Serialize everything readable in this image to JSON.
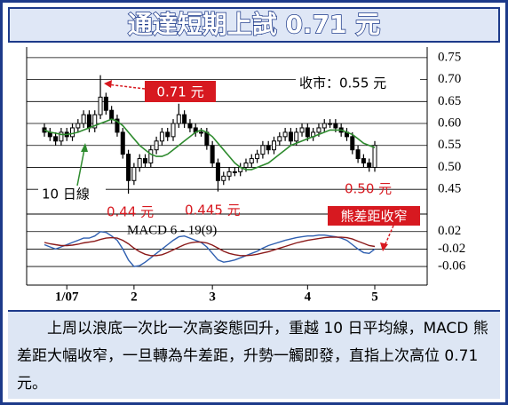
{
  "chart_data": {
    "type": "candlestick",
    "title": "通達短期上試 0.71 元",
    "categories": [
      null,
      null,
      null,
      null,
      "1/07",
      null,
      null,
      null,
      null,
      null,
      null,
      null,
      null,
      null,
      null,
      null,
      "2",
      null,
      null,
      null,
      null,
      null,
      null,
      null,
      null,
      null,
      null,
      null,
      null,
      null,
      "3",
      null,
      null,
      null,
      null,
      null,
      null,
      null,
      null,
      null,
      null,
      null,
      null,
      null,
      null,
      null,
      null,
      "4",
      null,
      null,
      null,
      null,
      null,
      null,
      null,
      null,
      null,
      null,
      null,
      "5"
    ],
    "open": [
      0.59,
      0.58,
      0.57,
      0.56,
      0.58,
      0.57,
      0.59,
      0.6,
      0.62,
      0.59,
      0.62,
      0.66,
      0.63,
      0.61,
      0.58,
      0.53,
      0.47,
      0.5,
      0.52,
      0.51,
      0.54,
      0.56,
      0.58,
      0.57,
      0.6,
      0.62,
      0.6,
      0.59,
      0.58,
      0.58,
      0.55,
      0.51,
      0.47,
      0.48,
      0.49,
      0.49,
      0.5,
      0.51,
      0.52,
      0.53,
      0.55,
      0.54,
      0.56,
      0.57,
      0.58,
      0.56,
      0.58,
      0.59,
      0.57,
      0.58,
      0.59,
      0.6,
      0.6,
      0.59,
      0.58,
      0.57,
      0.54,
      0.52,
      0.51,
      0.5
    ],
    "high": [
      0.6,
      0.59,
      0.58,
      0.59,
      0.59,
      0.6,
      0.61,
      0.63,
      0.63,
      0.63,
      0.71,
      0.67,
      0.64,
      0.62,
      0.59,
      0.54,
      0.51,
      0.53,
      0.53,
      0.55,
      0.57,
      0.59,
      0.59,
      0.61,
      0.645,
      0.63,
      0.61,
      0.6,
      0.59,
      0.59,
      0.56,
      0.52,
      0.49,
      0.5,
      0.5,
      0.51,
      0.52,
      0.53,
      0.54,
      0.56,
      0.56,
      0.57,
      0.58,
      0.59,
      0.59,
      0.59,
      0.6,
      0.6,
      0.59,
      0.6,
      0.61,
      0.61,
      0.61,
      0.6,
      0.59,
      0.58,
      0.55,
      0.53,
      0.52,
      0.56
    ],
    "low": [
      0.57,
      0.56,
      0.55,
      0.55,
      0.56,
      0.56,
      0.58,
      0.59,
      0.58,
      0.58,
      0.61,
      0.62,
      0.6,
      0.57,
      0.52,
      0.44,
      0.46,
      0.49,
      0.5,
      0.5,
      0.53,
      0.55,
      0.56,
      0.56,
      0.59,
      0.59,
      0.58,
      0.57,
      0.57,
      0.54,
      0.5,
      0.445,
      0.46,
      0.47,
      0.48,
      0.48,
      0.49,
      0.5,
      0.51,
      0.52,
      0.53,
      0.53,
      0.55,
      0.56,
      0.55,
      0.55,
      0.57,
      0.56,
      0.56,
      0.57,
      0.58,
      0.59,
      0.58,
      0.57,
      0.56,
      0.53,
      0.51,
      0.5,
      0.49,
      0.49
    ],
    "close": [
      0.58,
      0.57,
      0.56,
      0.58,
      0.57,
      0.59,
      0.6,
      0.62,
      0.59,
      0.62,
      0.66,
      0.63,
      0.61,
      0.58,
      0.53,
      0.47,
      0.5,
      0.52,
      0.51,
      0.54,
      0.56,
      0.58,
      0.57,
      0.6,
      0.62,
      0.6,
      0.59,
      0.58,
      0.58,
      0.55,
      0.51,
      0.47,
      0.48,
      0.49,
      0.49,
      0.5,
      0.51,
      0.52,
      0.53,
      0.55,
      0.54,
      0.56,
      0.57,
      0.58,
      0.56,
      0.58,
      0.59,
      0.57,
      0.58,
      0.59,
      0.6,
      0.6,
      0.59,
      0.58,
      0.57,
      0.54,
      0.52,
      0.51,
      0.5,
      0.55
    ],
    "ma_color": "#2e8b2e",
    "ma": [
      0.585,
      0.58,
      0.578,
      0.575,
      0.575,
      0.577,
      0.58,
      0.585,
      0.59,
      0.595,
      0.6,
      0.605,
      0.61,
      0.605,
      0.595,
      0.58,
      0.565,
      0.55,
      0.54,
      0.53,
      0.525,
      0.525,
      0.53,
      0.54,
      0.55,
      0.56,
      0.57,
      0.58,
      0.585,
      0.58,
      0.57,
      0.555,
      0.54,
      0.525,
      0.51,
      0.5,
      0.495,
      0.495,
      0.5,
      0.505,
      0.51,
      0.52,
      0.53,
      0.54,
      0.55,
      0.555,
      0.56,
      0.565,
      0.57,
      0.575,
      0.58,
      0.585,
      0.585,
      0.585,
      0.58,
      0.575,
      0.565,
      0.555,
      0.55,
      0.545
    ],
    "ylim": [
      0.42,
      0.77
    ],
    "yticks": [
      0.75,
      {
        "value": 0.7,
        "label": "0.70"
      },
      0.65,
      {
        "value": 0.6,
        "label": "0.60"
      },
      0.55,
      {
        "value": 0.5,
        "label": "0.50"
      },
      0.45
    ],
    "grid": true,
    "macd_label": "MACD 6 - 19(9)",
    "macd_series": [
      {
        "color": "#2f5fb0",
        "values": [
          -0.01,
          -0.015,
          -0.02,
          -0.015,
          -0.01,
          -0.005,
          0.0,
          0.005,
          0.005,
          0.01,
          0.02,
          0.018,
          0.01,
          0.0,
          -0.02,
          -0.045,
          -0.06,
          -0.058,
          -0.05,
          -0.04,
          -0.03,
          -0.02,
          -0.01,
          0.0,
          0.008,
          0.01,
          0.005,
          0.0,
          -0.005,
          -0.015,
          -0.03,
          -0.045,
          -0.05,
          -0.048,
          -0.045,
          -0.04,
          -0.035,
          -0.03,
          -0.025,
          -0.018,
          -0.012,
          -0.008,
          -0.004,
          0.0,
          0.003,
          0.006,
          0.008,
          0.01,
          0.01,
          0.012,
          0.012,
          0.01,
          0.008,
          0.005,
          0.0,
          -0.01,
          -0.02,
          -0.028,
          -0.03,
          -0.02
        ]
      },
      {
        "color": "#8b1a1a",
        "values": [
          -0.005,
          -0.008,
          -0.01,
          -0.012,
          -0.012,
          -0.011,
          -0.009,
          -0.006,
          -0.004,
          -0.002,
          0.002,
          0.005,
          0.006,
          0.005,
          0.0,
          -0.008,
          -0.018,
          -0.026,
          -0.032,
          -0.035,
          -0.035,
          -0.033,
          -0.028,
          -0.022,
          -0.016,
          -0.01,
          -0.006,
          -0.004,
          -0.004,
          -0.006,
          -0.011,
          -0.018,
          -0.025,
          -0.03,
          -0.033,
          -0.035,
          -0.035,
          -0.034,
          -0.032,
          -0.029,
          -0.026,
          -0.022,
          -0.018,
          -0.014,
          -0.01,
          -0.006,
          -0.003,
          0.0,
          0.002,
          0.004,
          0.006,
          0.007,
          0.007,
          0.007,
          0.006,
          0.003,
          -0.002,
          -0.007,
          -0.012,
          -0.014
        ]
      }
    ],
    "macd_ylim": [
      -0.07,
      0.05
    ],
    "macd_yticks": [
      0.02,
      -0.02,
      -0.06
    ],
    "annotations": [
      "0.71 元",
      "收市：0.55 元",
      "10 日線",
      "0.44 元",
      "0.445 元",
      "0.50 元",
      "熊差距收窄"
    ],
    "caption": "上周以浪底一次比一次高姿態回升，重越 10 日平均線，MACD 熊差距大幅收窄，一旦轉為牛差距，升勢一觸即發，直指上次高位 0.71 元。"
  }
}
